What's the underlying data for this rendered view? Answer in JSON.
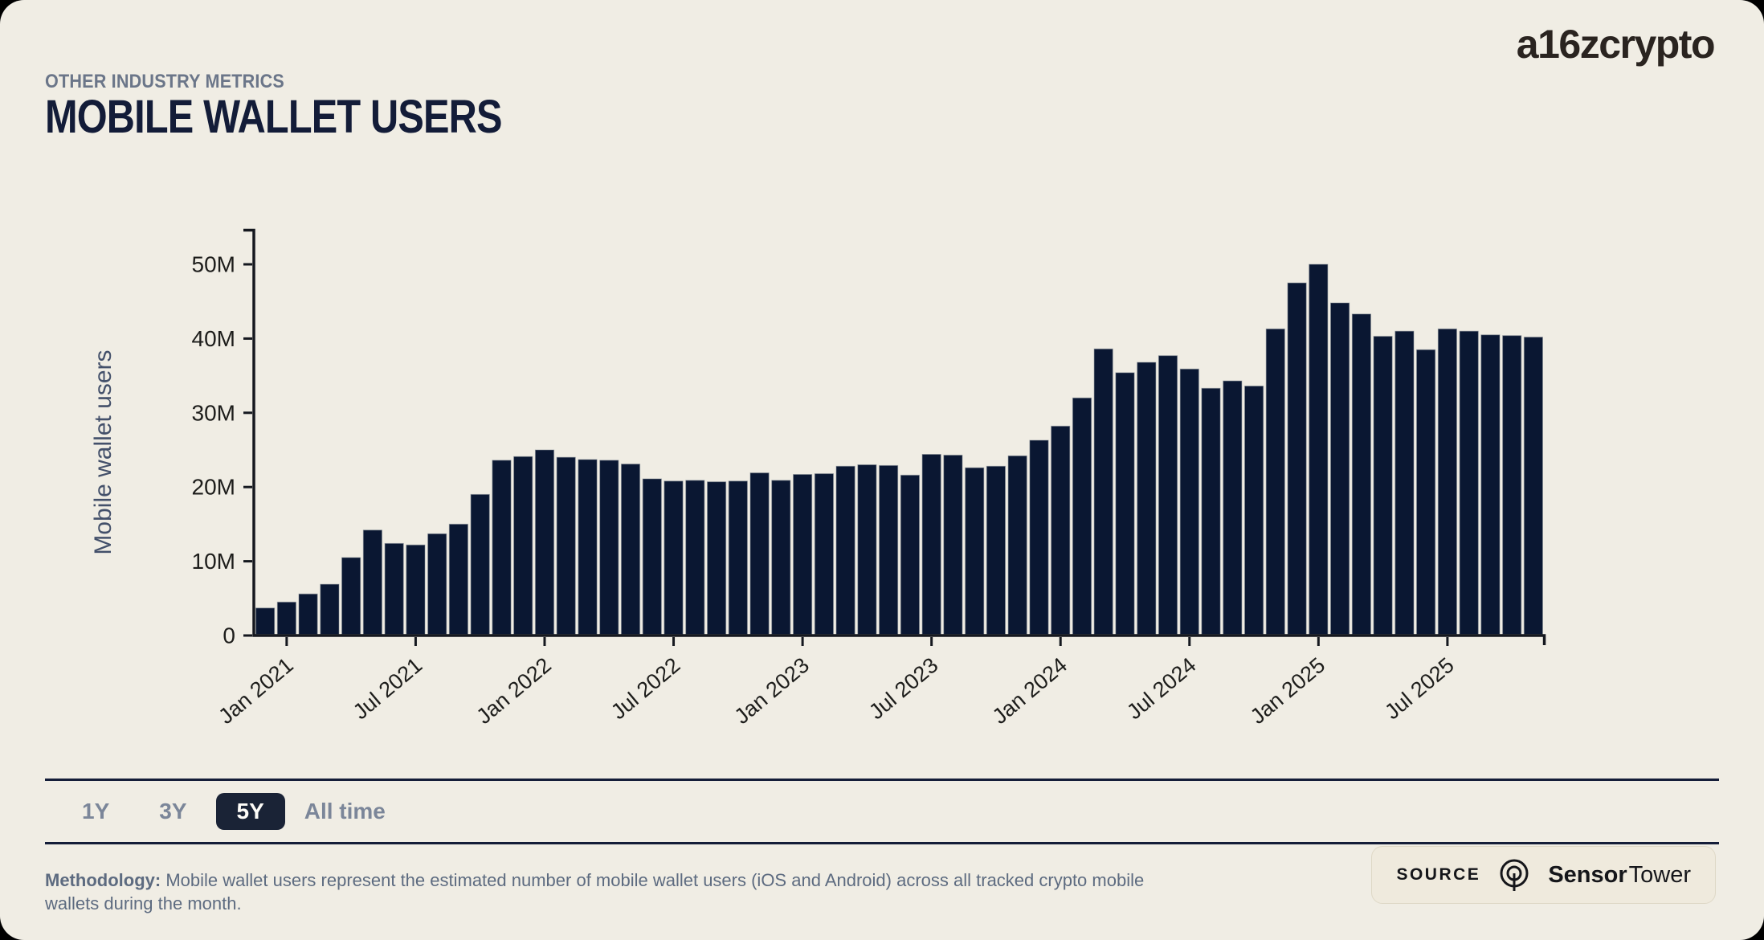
{
  "page": {
    "background": "#000000",
    "card_background": "#f0ede4"
  },
  "header": {
    "eyebrow": "OTHER INDUSTRY METRICS",
    "title": "MOBILE WALLET USERS",
    "brand": "a16zcrypto"
  },
  "chart_data": {
    "type": "bar",
    "title": "Mobile wallet users",
    "xlabel": "",
    "ylabel": "Mobile wallet users",
    "unit": "M",
    "bar_color": "#0a1732",
    "axis_color": "#15181f",
    "tick_label_color": "#1d1d1b",
    "ylabel_color": "#43506a",
    "ylim": [
      0,
      55
    ],
    "grid": false,
    "legend": "none",
    "y_tick_values": [
      0,
      10,
      20,
      30,
      40,
      50
    ],
    "y_tick_labels": [
      "0",
      "10M",
      "20M",
      "30M",
      "40M",
      "50M"
    ],
    "x_tick_labels": [
      "Jan 2021",
      "Jul 2021",
      "Jan 2022",
      "Jul 2022",
      "Jan 2023",
      "Jul 2023",
      "Jan 2024",
      "Jul 2024",
      "Jan 2025",
      "Jul 2025"
    ],
    "categories": [
      "Dec 2020",
      "Jan 2021",
      "Feb 2021",
      "Mar 2021",
      "Apr 2021",
      "May 2021",
      "Jun 2021",
      "Jul 2021",
      "Aug 2021",
      "Sep 2021",
      "Oct 2021",
      "Nov 2021",
      "Dec 2021",
      "Jan 2022",
      "Feb 2022",
      "Mar 2022",
      "Apr 2022",
      "May 2022",
      "Jun 2022",
      "Jul 2022",
      "Aug 2022",
      "Sep 2022",
      "Oct 2022",
      "Nov 2022",
      "Dec 2022",
      "Jan 2023",
      "Feb 2023",
      "Mar 2023",
      "Apr 2023",
      "May 2023",
      "Jun 2023",
      "Jul 2023",
      "Aug 2023",
      "Sep 2023",
      "Oct 2023",
      "Nov 2023",
      "Dec 2023",
      "Jan 2024",
      "Feb 2024",
      "Mar 2024",
      "Apr 2024",
      "May 2024",
      "Jun 2024",
      "Jul 2024",
      "Aug 2024",
      "Sep 2024",
      "Oct 2024",
      "Nov 2024",
      "Dec 2024",
      "Jan 2025",
      "Feb 2025",
      "Mar 2025",
      "Apr 2025",
      "May 2025",
      "Jun 2025",
      "Jul 2025",
      "Aug 2025",
      "Sep 2025",
      "Oct 2025",
      "Nov 2025"
    ],
    "values": [
      3.7,
      4.5,
      5.6,
      6.9,
      10.5,
      14.2,
      12.4,
      12.2,
      13.7,
      15.0,
      19.0,
      23.6,
      24.1,
      25.0,
      24.0,
      23.7,
      23.6,
      23.1,
      21.1,
      20.8,
      20.9,
      20.7,
      20.8,
      21.9,
      20.9,
      21.7,
      21.8,
      22.8,
      23.0,
      22.9,
      21.6,
      24.4,
      24.3,
      22.6,
      22.8,
      24.2,
      26.3,
      28.2,
      32.0,
      38.6,
      35.4,
      36.8,
      37.7,
      35.9,
      33.3,
      34.3,
      33.6,
      41.3,
      47.5,
      50.0,
      44.8,
      43.3,
      40.3,
      41.0,
      38.5,
      41.3,
      41.0,
      40.5,
      40.4,
      40.2
    ]
  },
  "controls": {
    "ranges": [
      {
        "label": "1Y",
        "selected": false
      },
      {
        "label": "3Y",
        "selected": false
      },
      {
        "label": "5Y",
        "selected": true
      },
      {
        "label": "All time",
        "selected": false
      }
    ]
  },
  "footer": {
    "methodology_label": "Methodology:",
    "methodology_text": "Mobile wallet users represent the estimated number of mobile wallet users (iOS and Android) across all tracked crypto mobile wallets during the month.",
    "source_label": "SOURCE",
    "source_brand_bold": "Sensor",
    "source_brand_regular": "Tower"
  }
}
